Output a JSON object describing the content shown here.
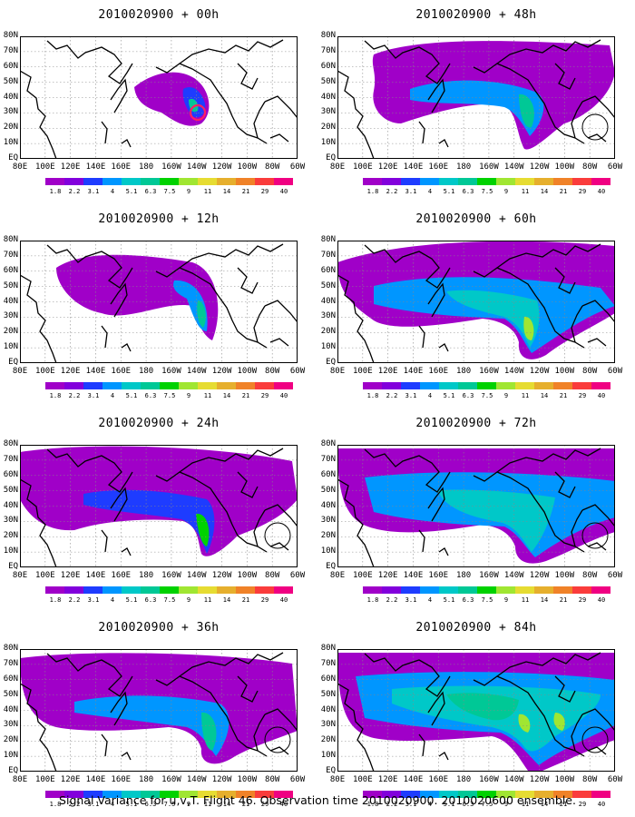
{
  "panels": [
    {
      "title": "2010020900 + 00h",
      "forecast_hour": 0
    },
    {
      "title": "2010020900 + 48h",
      "forecast_hour": 48
    },
    {
      "title": "2010020900 + 12h",
      "forecast_hour": 12
    },
    {
      "title": "2010020900 + 60h",
      "forecast_hour": 60
    },
    {
      "title": "2010020900 + 24h",
      "forecast_hour": 24
    },
    {
      "title": "2010020900 + 72h",
      "forecast_hour": 72
    },
    {
      "title": "2010020900 + 36h",
      "forecast_hour": 36
    },
    {
      "title": "2010020900 + 84h",
      "forecast_hour": 84
    }
  ],
  "lat_labels": [
    "80N",
    "70N",
    "60N",
    "50N",
    "40N",
    "30N",
    "20N",
    "10N",
    "EQ"
  ],
  "lon_labels": [
    "80E",
    "100E",
    "120E",
    "140E",
    "160E",
    "180",
    "160W",
    "140W",
    "120W",
    "100W",
    "80W",
    "60W"
  ],
  "colorbar": {
    "labels": [
      "1.8",
      "2.2",
      "3.1",
      "4",
      "5.1",
      "6.3",
      "7.5",
      "9",
      "11",
      "14",
      "21",
      "29",
      "40"
    ],
    "colors": [
      "#a000c8",
      "#8200dc",
      "#1e3cff",
      "#0096ff",
      "#00c8c8",
      "#00c896",
      "#00d200",
      "#a0e632",
      "#e6dc32",
      "#e6af2d",
      "#f08228",
      "#fa3c3c",
      "#f00082"
    ]
  },
  "caption": "Signal Variance for u,v,T. Flight 46. Observation time 2010020900. 2010020600 ensemble."
}
